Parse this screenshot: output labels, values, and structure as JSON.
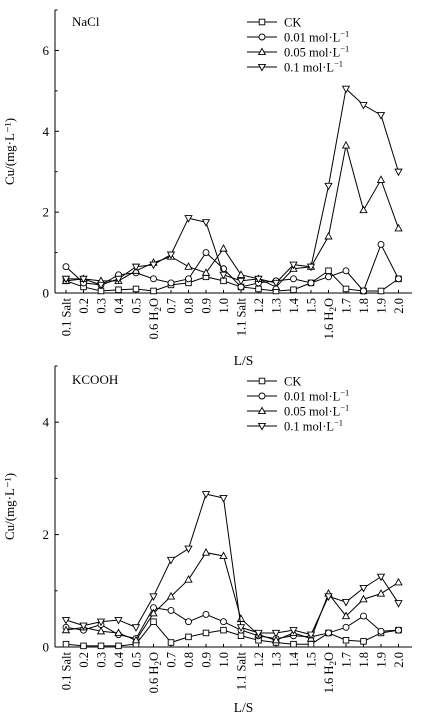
{
  "chart_data": [
    {
      "type": "line",
      "panel_label": "NaCl",
      "xlabel": "L/S",
      "ylabel": "Cu/(mg·L⁻¹)",
      "ylim": [
        0,
        7
      ],
      "yticks": [
        0,
        2,
        4,
        6
      ],
      "categories": [
        {
          "base": "0.1 Salt"
        },
        {
          "base": "0.2"
        },
        {
          "base": "0.3"
        },
        {
          "base": "0.4"
        },
        {
          "base": "0.5"
        },
        {
          "base": "0.6 H",
          "sub": "2",
          "tail": "O"
        },
        {
          "base": "0.7"
        },
        {
          "base": "0.8"
        },
        {
          "base": "0.9"
        },
        {
          "base": "1.0"
        },
        {
          "base": "1.1 Salt"
        },
        {
          "base": "1.2"
        },
        {
          "base": "1.3"
        },
        {
          "base": "1.4"
        },
        {
          "base": "1.5"
        },
        {
          "base": "1.6 H",
          "sub": "2",
          "tail": "O"
        },
        {
          "base": "1.7"
        },
        {
          "base": "1.8"
        },
        {
          "base": "1.9"
        },
        {
          "base": "2.0"
        }
      ],
      "legend": [
        {
          "text": "CK"
        },
        {
          "text": "0.01 mol·L",
          "sup": "−1"
        },
        {
          "text": "0.05 mol·L",
          "sup": "−1"
        },
        {
          "text": "0.1 mol·L",
          "sup": "−1"
        }
      ],
      "series": [
        {
          "marker": "square",
          "values": [
            0.3,
            0.15,
            0.05,
            0.08,
            0.1,
            0.05,
            0.2,
            0.25,
            0.4,
            0.3,
            0.15,
            0.1,
            0.05,
            0.08,
            0.25,
            0.55,
            0.1,
            0.05,
            0.05,
            0.35
          ]
        },
        {
          "marker": "circle",
          "values": [
            0.65,
            0.25,
            0.2,
            0.45,
            0.5,
            0.35,
            0.25,
            0.35,
            1.0,
            0.6,
            0.15,
            0.25,
            0.3,
            0.35,
            0.25,
            0.4,
            0.55,
            0.05,
            1.2,
            0.35
          ]
        },
        {
          "marker": "triangle-up",
          "values": [
            0.3,
            0.35,
            0.3,
            0.3,
            0.55,
            0.75,
            0.9,
            0.65,
            0.5,
            1.1,
            0.45,
            0.35,
            0.15,
            0.6,
            0.65,
            1.4,
            3.65,
            2.05,
            2.8,
            1.6
          ]
        },
        {
          "marker": "triangle-down",
          "values": [
            0.35,
            0.35,
            0.2,
            0.35,
            0.65,
            0.7,
            0.95,
            1.85,
            1.75,
            0.45,
            0.3,
            0.35,
            0.25,
            0.7,
            0.65,
            2.65,
            5.05,
            4.65,
            4.4,
            3.0
          ]
        }
      ]
    },
    {
      "type": "line",
      "panel_label": "KCOOH",
      "xlabel": "L/S",
      "ylabel": "Cu/(mg·L⁻¹)",
      "ylim": [
        0,
        5
      ],
      "yticks": [
        0,
        2,
        4
      ],
      "categories": [
        {
          "base": "0.1 Salt"
        },
        {
          "base": "0.2"
        },
        {
          "base": "0.3"
        },
        {
          "base": "0.4"
        },
        {
          "base": "0.5"
        },
        {
          "base": "0.6 H",
          "sub": "2",
          "tail": "O"
        },
        {
          "base": "0.7"
        },
        {
          "base": "0.8"
        },
        {
          "base": "0.9"
        },
        {
          "base": "1.0"
        },
        {
          "base": "1.1 Salt"
        },
        {
          "base": "1.2"
        },
        {
          "base": "1.3"
        },
        {
          "base": "1.4"
        },
        {
          "base": "1.5"
        },
        {
          "base": "1.6 H",
          "sub": "2",
          "tail": "O"
        },
        {
          "base": "1.7"
        },
        {
          "base": "1.8"
        },
        {
          "base": "1.9"
        },
        {
          "base": "2.0"
        }
      ],
      "legend": [
        {
          "text": "CK"
        },
        {
          "text": "0.01 mol·L",
          "sup": "−1"
        },
        {
          "text": "0.05 mol·L",
          "sup": "−1"
        },
        {
          "text": "0.1 mol·L",
          "sup": "−1"
        }
      ],
      "series": [
        {
          "marker": "square",
          "values": [
            0.05,
            0.02,
            0.02,
            0.02,
            0.05,
            0.45,
            0.08,
            0.18,
            0.25,
            0.3,
            0.2,
            0.12,
            0.08,
            0.05,
            0.05,
            0.25,
            0.12,
            0.1,
            0.25,
            0.3
          ]
        },
        {
          "marker": "circle",
          "values": [
            0.35,
            0.3,
            0.4,
            0.22,
            0.15,
            0.7,
            0.65,
            0.45,
            0.58,
            0.45,
            0.3,
            0.2,
            0.15,
            0.2,
            0.18,
            0.25,
            0.35,
            0.55,
            0.28,
            0.3
          ]
        },
        {
          "marker": "triangle-up",
          "values": [
            0.3,
            0.35,
            0.28,
            0.25,
            0.12,
            0.6,
            0.9,
            1.2,
            1.68,
            1.62,
            0.5,
            0.22,
            0.12,
            0.25,
            0.15,
            0.95,
            0.55,
            0.85,
            0.95,
            1.15
          ]
        },
        {
          "marker": "triangle-down",
          "values": [
            0.48,
            0.38,
            0.45,
            0.48,
            0.35,
            0.9,
            1.55,
            1.75,
            2.72,
            2.65,
            0.35,
            0.25,
            0.25,
            0.3,
            0.22,
            0.9,
            0.8,
            1.05,
            1.25,
            0.78
          ]
        }
      ]
    }
  ]
}
